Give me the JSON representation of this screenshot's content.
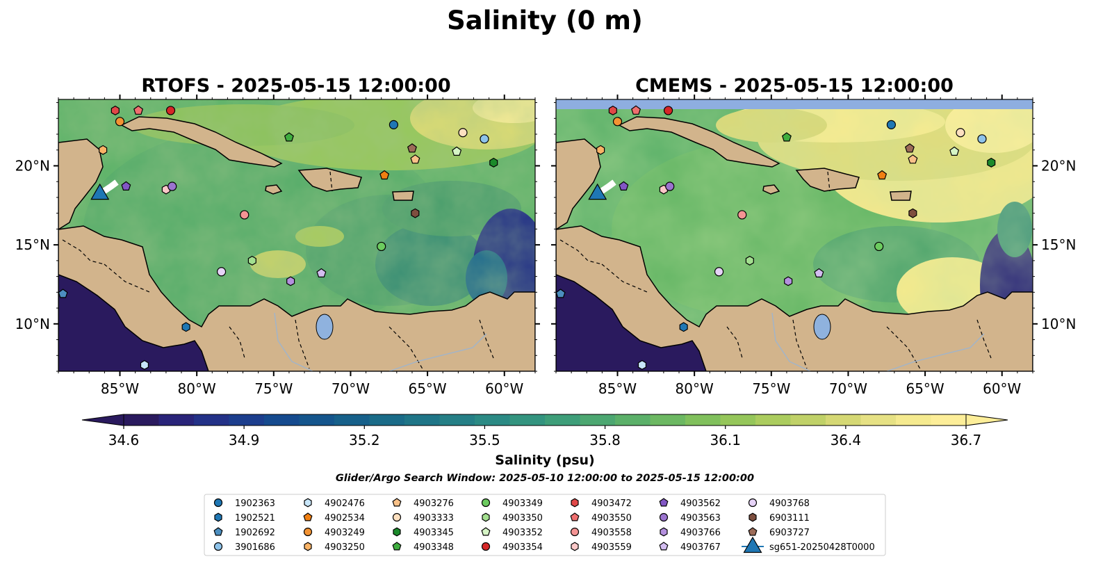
{
  "figure": {
    "suptitle": "Salinity (0 m)",
    "search_window": "Glider/Argo Search Window: 2025-05-10 12:00:00 to 2025-05-15 12:00:00"
  },
  "colors": {
    "land": "#d2b48c",
    "lakes": "#8fb2de",
    "rivers": "#9fb4cc",
    "nodata": "#8eaee0",
    "coast": "#000000"
  },
  "chart_data": [
    {
      "type": "heatmap",
      "title": "RTOFS - 2025-05-15 12:00:00",
      "lon_range": [
        -89,
        -58
      ],
      "lat_range": [
        7,
        24.2
      ],
      "x_ticks": [
        "85°W",
        "80°W",
        "75°W",
        "70°W",
        "65°W",
        "60°W"
      ],
      "x_tick_values": [
        -85,
        -80,
        -75,
        -70,
        -65,
        -60
      ],
      "y_ticks": [
        "10°N",
        "15°N",
        "20°N"
      ],
      "y_tick_values": [
        10,
        15,
        20
      ],
      "y_tick_side": "left"
    },
    {
      "type": "heatmap",
      "title": "CMEMS - 2025-05-15 12:00:00",
      "lon_range": [
        -89,
        -58
      ],
      "lat_range": [
        7,
        24.2
      ],
      "x_ticks": [
        "85°W",
        "80°W",
        "75°W",
        "70°W",
        "65°W",
        "60°W"
      ],
      "x_tick_values": [
        -85,
        -80,
        -75,
        -70,
        -65,
        -60
      ],
      "y_ticks": [
        "10°N",
        "15°N",
        "20°N"
      ],
      "y_tick_values": [
        10,
        15,
        20
      ],
      "y_tick_side": "right",
      "top_band_no_data": true
    }
  ],
  "colorbar": {
    "label": "Salinity (psu)",
    "min": 34.6,
    "max": 36.7,
    "ticks": [
      "34.6",
      "34.9",
      "35.2",
      "35.5",
      "35.8",
      "36.1",
      "36.4",
      "36.7"
    ],
    "tick_values": [
      34.6,
      34.9,
      35.2,
      35.5,
      35.8,
      36.1,
      36.4,
      36.7
    ],
    "extend": "both",
    "colormap": "haline",
    "colors": [
      "#2a1a5e",
      "#292479",
      "#233187",
      "#1c3e8d",
      "#154a8e",
      "#14558c",
      "#16608a",
      "#1a6b88",
      "#1f7587",
      "#257f86",
      "#2b8a84",
      "#33947f",
      "#3e9e79",
      "#4ca771",
      "#5bb069",
      "#6cb862",
      "#80c05c",
      "#95c65a",
      "#abcc5e",
      "#c0d168",
      "#d5d874",
      "#e6e184",
      "#f5ea8f",
      "#fdee99"
    ]
  },
  "legend": {
    "columns": [
      [
        {
          "label": "1902363",
          "marker": "circle",
          "color": "#1f77b4"
        },
        {
          "label": "1902521",
          "marker": "hexagon",
          "color": "#1f77b4"
        },
        {
          "label": "1902692",
          "marker": "pentagon",
          "color": "#4c8ebf"
        },
        {
          "label": "3901686",
          "marker": "circle",
          "color": "#8ec3ea"
        }
      ],
      [
        {
          "label": "4902476",
          "marker": "hexagon",
          "color": "#c8e6fa"
        },
        {
          "label": "4902534",
          "marker": "pentagon",
          "color": "#f07f12"
        },
        {
          "label": "4903249",
          "marker": "circle",
          "color": "#f39333"
        },
        {
          "label": "4903250",
          "marker": "hexagon",
          "color": "#f9b366"
        }
      ],
      [
        {
          "label": "4903276",
          "marker": "pentagon",
          "color": "#f9c188"
        },
        {
          "label": "4903333",
          "marker": "circle",
          "color": "#fde0c0"
        },
        {
          "label": "4903345",
          "marker": "hexagon",
          "color": "#1b8a2b"
        },
        {
          "label": "4903348",
          "marker": "pentagon",
          "color": "#3fad3f"
        }
      ],
      [
        {
          "label": "4903349",
          "marker": "circle",
          "color": "#6ccb5f"
        },
        {
          "label": "4903350",
          "marker": "hexagon",
          "color": "#a3df8f"
        },
        {
          "label": "4903352",
          "marker": "pentagon",
          "color": "#d6f5c6"
        },
        {
          "label": "4903354",
          "marker": "circle",
          "color": "#d62728"
        }
      ],
      [
        {
          "label": "4903472",
          "marker": "hexagon",
          "color": "#e04848"
        },
        {
          "label": "4903550",
          "marker": "pentagon",
          "color": "#ef6f6f"
        },
        {
          "label": "4903558",
          "marker": "circle",
          "color": "#f59494"
        },
        {
          "label": "4903559",
          "marker": "hexagon",
          "color": "#fcc8c8"
        }
      ],
      [
        {
          "label": "4903562",
          "marker": "pentagon",
          "color": "#8257c4"
        },
        {
          "label": "4903563",
          "marker": "circle",
          "color": "#9b74cf"
        },
        {
          "label": "4903766",
          "marker": "hexagon",
          "color": "#b490de"
        },
        {
          "label": "4903767",
          "marker": "pentagon",
          "color": "#d3bdf0"
        }
      ],
      [
        {
          "label": "4903768",
          "marker": "circle",
          "color": "#e6d3f7"
        },
        {
          "label": "6903111",
          "marker": "hexagon",
          "color": "#7e4f3f"
        },
        {
          "label": "6903727",
          "marker": "pentagon",
          "color": "#9c6b58"
        },
        {
          "label": "sg651-20250428T0000",
          "marker": "triangle",
          "color": "#1f77b4"
        }
      ]
    ]
  },
  "floats": [
    {
      "id": "1902363",
      "lon": -67.2,
      "lat": 22.6
    },
    {
      "id": "1902521",
      "lon": -80.7,
      "lat": 9.8
    },
    {
      "id": "1902692",
      "lon": -88.7,
      "lat": 11.9
    },
    {
      "id": "3901686",
      "lon": -61.3,
      "lat": 21.7
    },
    {
      "id": "4902476",
      "lon": -83.4,
      "lat": 7.4
    },
    {
      "id": "4902534",
      "lon": -67.8,
      "lat": 19.4
    },
    {
      "id": "4903249",
      "lon": -85.0,
      "lat": 22.8
    },
    {
      "id": "4903250",
      "lon": -86.1,
      "lat": 21.0
    },
    {
      "id": "4903276",
      "lon": -65.8,
      "lat": 20.4
    },
    {
      "id": "4903333",
      "lon": -62.7,
      "lat": 22.1
    },
    {
      "id": "4903345",
      "lon": -60.7,
      "lat": 20.2
    },
    {
      "id": "4903348",
      "lon": -74.0,
      "lat": 21.8
    },
    {
      "id": "4903349",
      "lon": -68.0,
      "lat": 14.9
    },
    {
      "id": "4903350",
      "lon": -76.4,
      "lat": 14.0
    },
    {
      "id": "4903352",
      "lon": -63.1,
      "lat": 20.9
    },
    {
      "id": "4903354",
      "lon": -81.7,
      "lat": 23.5
    },
    {
      "id": "4903472",
      "lon": -85.3,
      "lat": 23.5
    },
    {
      "id": "4903550",
      "lon": -83.8,
      "lat": 23.5
    },
    {
      "id": "4903558",
      "lon": -76.9,
      "lat": 16.9
    },
    {
      "id": "4903559",
      "lon": -82.0,
      "lat": 18.5
    },
    {
      "id": "4903562",
      "lon": -84.6,
      "lat": 18.7
    },
    {
      "id": "4903563",
      "lon": -81.6,
      "lat": 18.7
    },
    {
      "id": "4903766",
      "lon": -73.9,
      "lat": 12.7
    },
    {
      "id": "4903767",
      "lon": -71.9,
      "lat": 13.2
    },
    {
      "id": "4903768",
      "lon": -78.4,
      "lat": 13.3
    },
    {
      "id": "6903111",
      "lon": -65.8,
      "lat": 17.0
    },
    {
      "id": "6903727",
      "lon": -66.0,
      "lat": 21.1
    },
    {
      "id": "sg651-20250428T0000",
      "lon": -86.3,
      "lat": 18.3
    }
  ]
}
